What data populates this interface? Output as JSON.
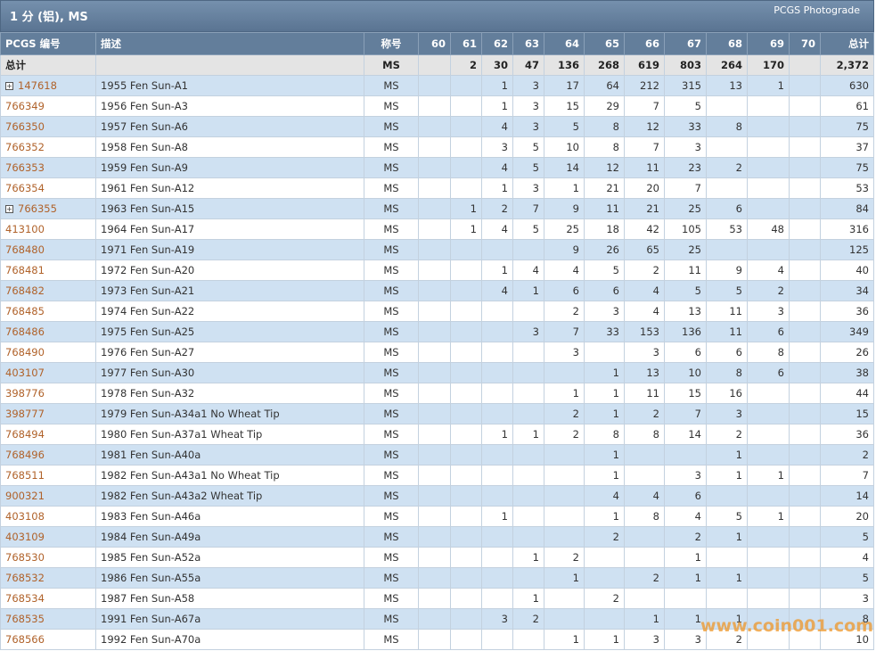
{
  "header": {
    "title": "1 分 (铝), MS",
    "link": "PCGS Photograde"
  },
  "table": {
    "columns": [
      "PCGS 编号",
      "描述",
      "称号",
      "60",
      "61",
      "62",
      "63",
      "64",
      "65",
      "66",
      "67",
      "68",
      "69",
      "70",
      "总计"
    ],
    "totals": {
      "label": "总计",
      "designation": "MS",
      "grades": [
        null,
        2,
        30,
        47,
        136,
        268,
        619,
        803,
        264,
        170,
        null
      ],
      "total": "2,372"
    },
    "rows": [
      {
        "pcgs": "147618",
        "expandable": true,
        "description": "1955 Fen Sun-A1",
        "designation": "MS",
        "grades": [
          null,
          null,
          1,
          3,
          17,
          64,
          212,
          315,
          13,
          1,
          null
        ],
        "total": 630
      },
      {
        "pcgs": "766349",
        "expandable": false,
        "description": "1956 Fen Sun-A3",
        "designation": "MS",
        "grades": [
          null,
          null,
          1,
          3,
          15,
          29,
          7,
          5,
          null,
          null,
          null
        ],
        "total": 61
      },
      {
        "pcgs": "766350",
        "expandable": false,
        "description": "1957 Fen Sun-A6",
        "designation": "MS",
        "grades": [
          null,
          null,
          4,
          3,
          5,
          8,
          12,
          33,
          8,
          null,
          null
        ],
        "total": 75
      },
      {
        "pcgs": "766352",
        "expandable": false,
        "description": "1958 Fen Sun-A8",
        "designation": "MS",
        "grades": [
          null,
          null,
          3,
          5,
          10,
          8,
          7,
          3,
          null,
          null,
          null
        ],
        "total": 37
      },
      {
        "pcgs": "766353",
        "expandable": false,
        "description": "1959 Fen Sun-A9",
        "designation": "MS",
        "grades": [
          null,
          null,
          4,
          5,
          14,
          12,
          11,
          23,
          2,
          null,
          null
        ],
        "total": 75
      },
      {
        "pcgs": "766354",
        "expandable": false,
        "description": "1961 Fen Sun-A12",
        "designation": "MS",
        "grades": [
          null,
          null,
          1,
          3,
          1,
          21,
          20,
          7,
          null,
          null,
          null
        ],
        "total": 53
      },
      {
        "pcgs": "766355",
        "expandable": true,
        "description": "1963 Fen Sun-A15",
        "designation": "MS",
        "grades": [
          null,
          1,
          2,
          7,
          9,
          11,
          21,
          25,
          6,
          null,
          null
        ],
        "total": 84
      },
      {
        "pcgs": "413100",
        "expandable": false,
        "description": "1964 Fen Sun-A17",
        "designation": "MS",
        "grades": [
          null,
          1,
          4,
          5,
          25,
          18,
          42,
          105,
          53,
          48,
          null
        ],
        "total": 316
      },
      {
        "pcgs": "768480",
        "expandable": false,
        "description": "1971 Fen Sun-A19",
        "designation": "MS",
        "grades": [
          null,
          null,
          null,
          null,
          9,
          26,
          65,
          25,
          null,
          null,
          null
        ],
        "total": 125
      },
      {
        "pcgs": "768481",
        "expandable": false,
        "description": "1972 Fen Sun-A20",
        "designation": "MS",
        "grades": [
          null,
          null,
          1,
          4,
          4,
          5,
          2,
          11,
          9,
          4,
          null
        ],
        "total": 40
      },
      {
        "pcgs": "768482",
        "expandable": false,
        "description": "1973 Fen Sun-A21",
        "designation": "MS",
        "grades": [
          null,
          null,
          4,
          1,
          6,
          6,
          4,
          5,
          5,
          2,
          null
        ],
        "total": 34
      },
      {
        "pcgs": "768485",
        "expandable": false,
        "description": "1974 Fen Sun-A22",
        "designation": "MS",
        "grades": [
          null,
          null,
          null,
          null,
          2,
          3,
          4,
          13,
          11,
          3,
          null
        ],
        "total": 36
      },
      {
        "pcgs": "768486",
        "expandable": false,
        "description": "1975 Fen Sun-A25",
        "designation": "MS",
        "grades": [
          null,
          null,
          null,
          3,
          7,
          33,
          153,
          136,
          11,
          6,
          null
        ],
        "total": 349
      },
      {
        "pcgs": "768490",
        "expandable": false,
        "description": "1976 Fen Sun-A27",
        "designation": "MS",
        "grades": [
          null,
          null,
          null,
          null,
          3,
          null,
          3,
          6,
          6,
          8,
          null
        ],
        "total": 26
      },
      {
        "pcgs": "403107",
        "expandable": false,
        "description": "1977 Fen Sun-A30",
        "designation": "MS",
        "grades": [
          null,
          null,
          null,
          null,
          null,
          1,
          13,
          10,
          8,
          6,
          null
        ],
        "total": 38
      },
      {
        "pcgs": "398776",
        "expandable": false,
        "description": "1978 Fen Sun-A32",
        "designation": "MS",
        "grades": [
          null,
          null,
          null,
          null,
          1,
          1,
          11,
          15,
          16,
          null,
          null
        ],
        "total": 44
      },
      {
        "pcgs": "398777",
        "expandable": false,
        "description": "1979 Fen Sun-A34a1 No Wheat Tip",
        "designation": "MS",
        "grades": [
          null,
          null,
          null,
          null,
          2,
          1,
          2,
          7,
          3,
          null,
          null
        ],
        "total": 15
      },
      {
        "pcgs": "768494",
        "expandable": false,
        "description": "1980 Fen Sun-A37a1 Wheat Tip",
        "designation": "MS",
        "grades": [
          null,
          null,
          1,
          1,
          2,
          8,
          8,
          14,
          2,
          null,
          null
        ],
        "total": 36
      },
      {
        "pcgs": "768496",
        "expandable": false,
        "description": "1981 Fen Sun-A40a",
        "designation": "MS",
        "grades": [
          null,
          null,
          null,
          null,
          null,
          1,
          null,
          null,
          1,
          null,
          null
        ],
        "total": 2
      },
      {
        "pcgs": "768511",
        "expandable": false,
        "description": "1982 Fen Sun-A43a1 No Wheat Tip",
        "designation": "MS",
        "grades": [
          null,
          null,
          null,
          null,
          null,
          1,
          null,
          3,
          1,
          1,
          null
        ],
        "total": 7
      },
      {
        "pcgs": "900321",
        "expandable": false,
        "description": "1982 Fen Sun-A43a2 Wheat Tip",
        "designation": "MS",
        "grades": [
          null,
          null,
          null,
          null,
          null,
          4,
          4,
          6,
          null,
          null,
          null
        ],
        "total": 14
      },
      {
        "pcgs": "403108",
        "expandable": false,
        "description": "1983 Fen Sun-A46a",
        "designation": "MS",
        "grades": [
          null,
          null,
          1,
          null,
          null,
          1,
          8,
          4,
          5,
          1,
          null
        ],
        "total": 20
      },
      {
        "pcgs": "403109",
        "expandable": false,
        "description": "1984 Fen Sun-A49a",
        "designation": "MS",
        "grades": [
          null,
          null,
          null,
          null,
          null,
          2,
          null,
          2,
          1,
          null,
          null
        ],
        "total": 5
      },
      {
        "pcgs": "768530",
        "expandable": false,
        "description": "1985 Fen Sun-A52a",
        "designation": "MS",
        "grades": [
          null,
          null,
          null,
          1,
          2,
          null,
          null,
          1,
          null,
          null,
          null
        ],
        "total": 4
      },
      {
        "pcgs": "768532",
        "expandable": false,
        "description": "1986 Fen Sun-A55a",
        "designation": "MS",
        "grades": [
          null,
          null,
          null,
          null,
          1,
          null,
          2,
          1,
          1,
          null,
          null
        ],
        "total": 5
      },
      {
        "pcgs": "768534",
        "expandable": false,
        "description": "1987 Fen Sun-A58",
        "designation": "MS",
        "grades": [
          null,
          null,
          null,
          1,
          null,
          2,
          null,
          null,
          null,
          null,
          null
        ],
        "total": 3
      },
      {
        "pcgs": "768535",
        "expandable": false,
        "description": "1991 Fen Sun-A67a",
        "designation": "MS",
        "grades": [
          null,
          null,
          3,
          2,
          null,
          null,
          1,
          1,
          1,
          null,
          null
        ],
        "total": 8
      },
      {
        "pcgs": "768566",
        "expandable": false,
        "description": "1992 Fen Sun-A70a",
        "designation": "MS",
        "grades": [
          null,
          null,
          null,
          null,
          1,
          1,
          3,
          3,
          2,
          null,
          null
        ],
        "total": 10
      }
    ]
  },
  "watermark": "www.coin001.com"
}
